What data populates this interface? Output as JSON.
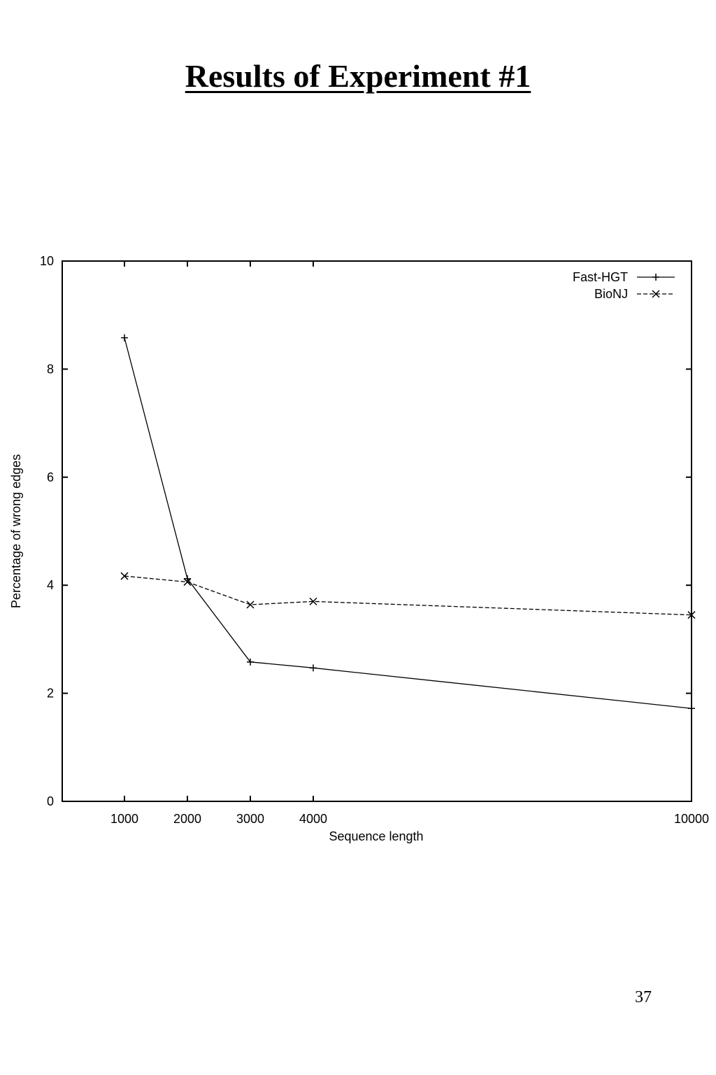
{
  "slide": {
    "title": "Results of Experiment #1",
    "page_number": "37"
  },
  "chart_data": {
    "type": "line",
    "xlabel": "Sequence length",
    "ylabel": "Percentage of wrong edges",
    "xlim": [
      0,
      10000
    ],
    "ylim": [
      0,
      10
    ],
    "x_ticks": [
      1000,
      2000,
      3000,
      4000,
      10000
    ],
    "y_ticks": [
      0,
      2,
      4,
      6,
      8,
      10
    ],
    "x_scale": "categorical-spaced",
    "grid": false,
    "legend_position": "top-right",
    "series": [
      {
        "name": "Fast-HGT",
        "marker": "plus",
        "line_style": "solid",
        "x": [
          1000,
          2000,
          3000,
          4000,
          10000
        ],
        "y": [
          8.58,
          4.12,
          2.58,
          2.47,
          1.72
        ]
      },
      {
        "name": "BioNJ",
        "marker": "cross",
        "line_style": "dashed",
        "x": [
          1000,
          2000,
          3000,
          4000,
          10000
        ],
        "y": [
          4.17,
          4.06,
          3.64,
          3.7,
          3.45
        ]
      }
    ]
  }
}
